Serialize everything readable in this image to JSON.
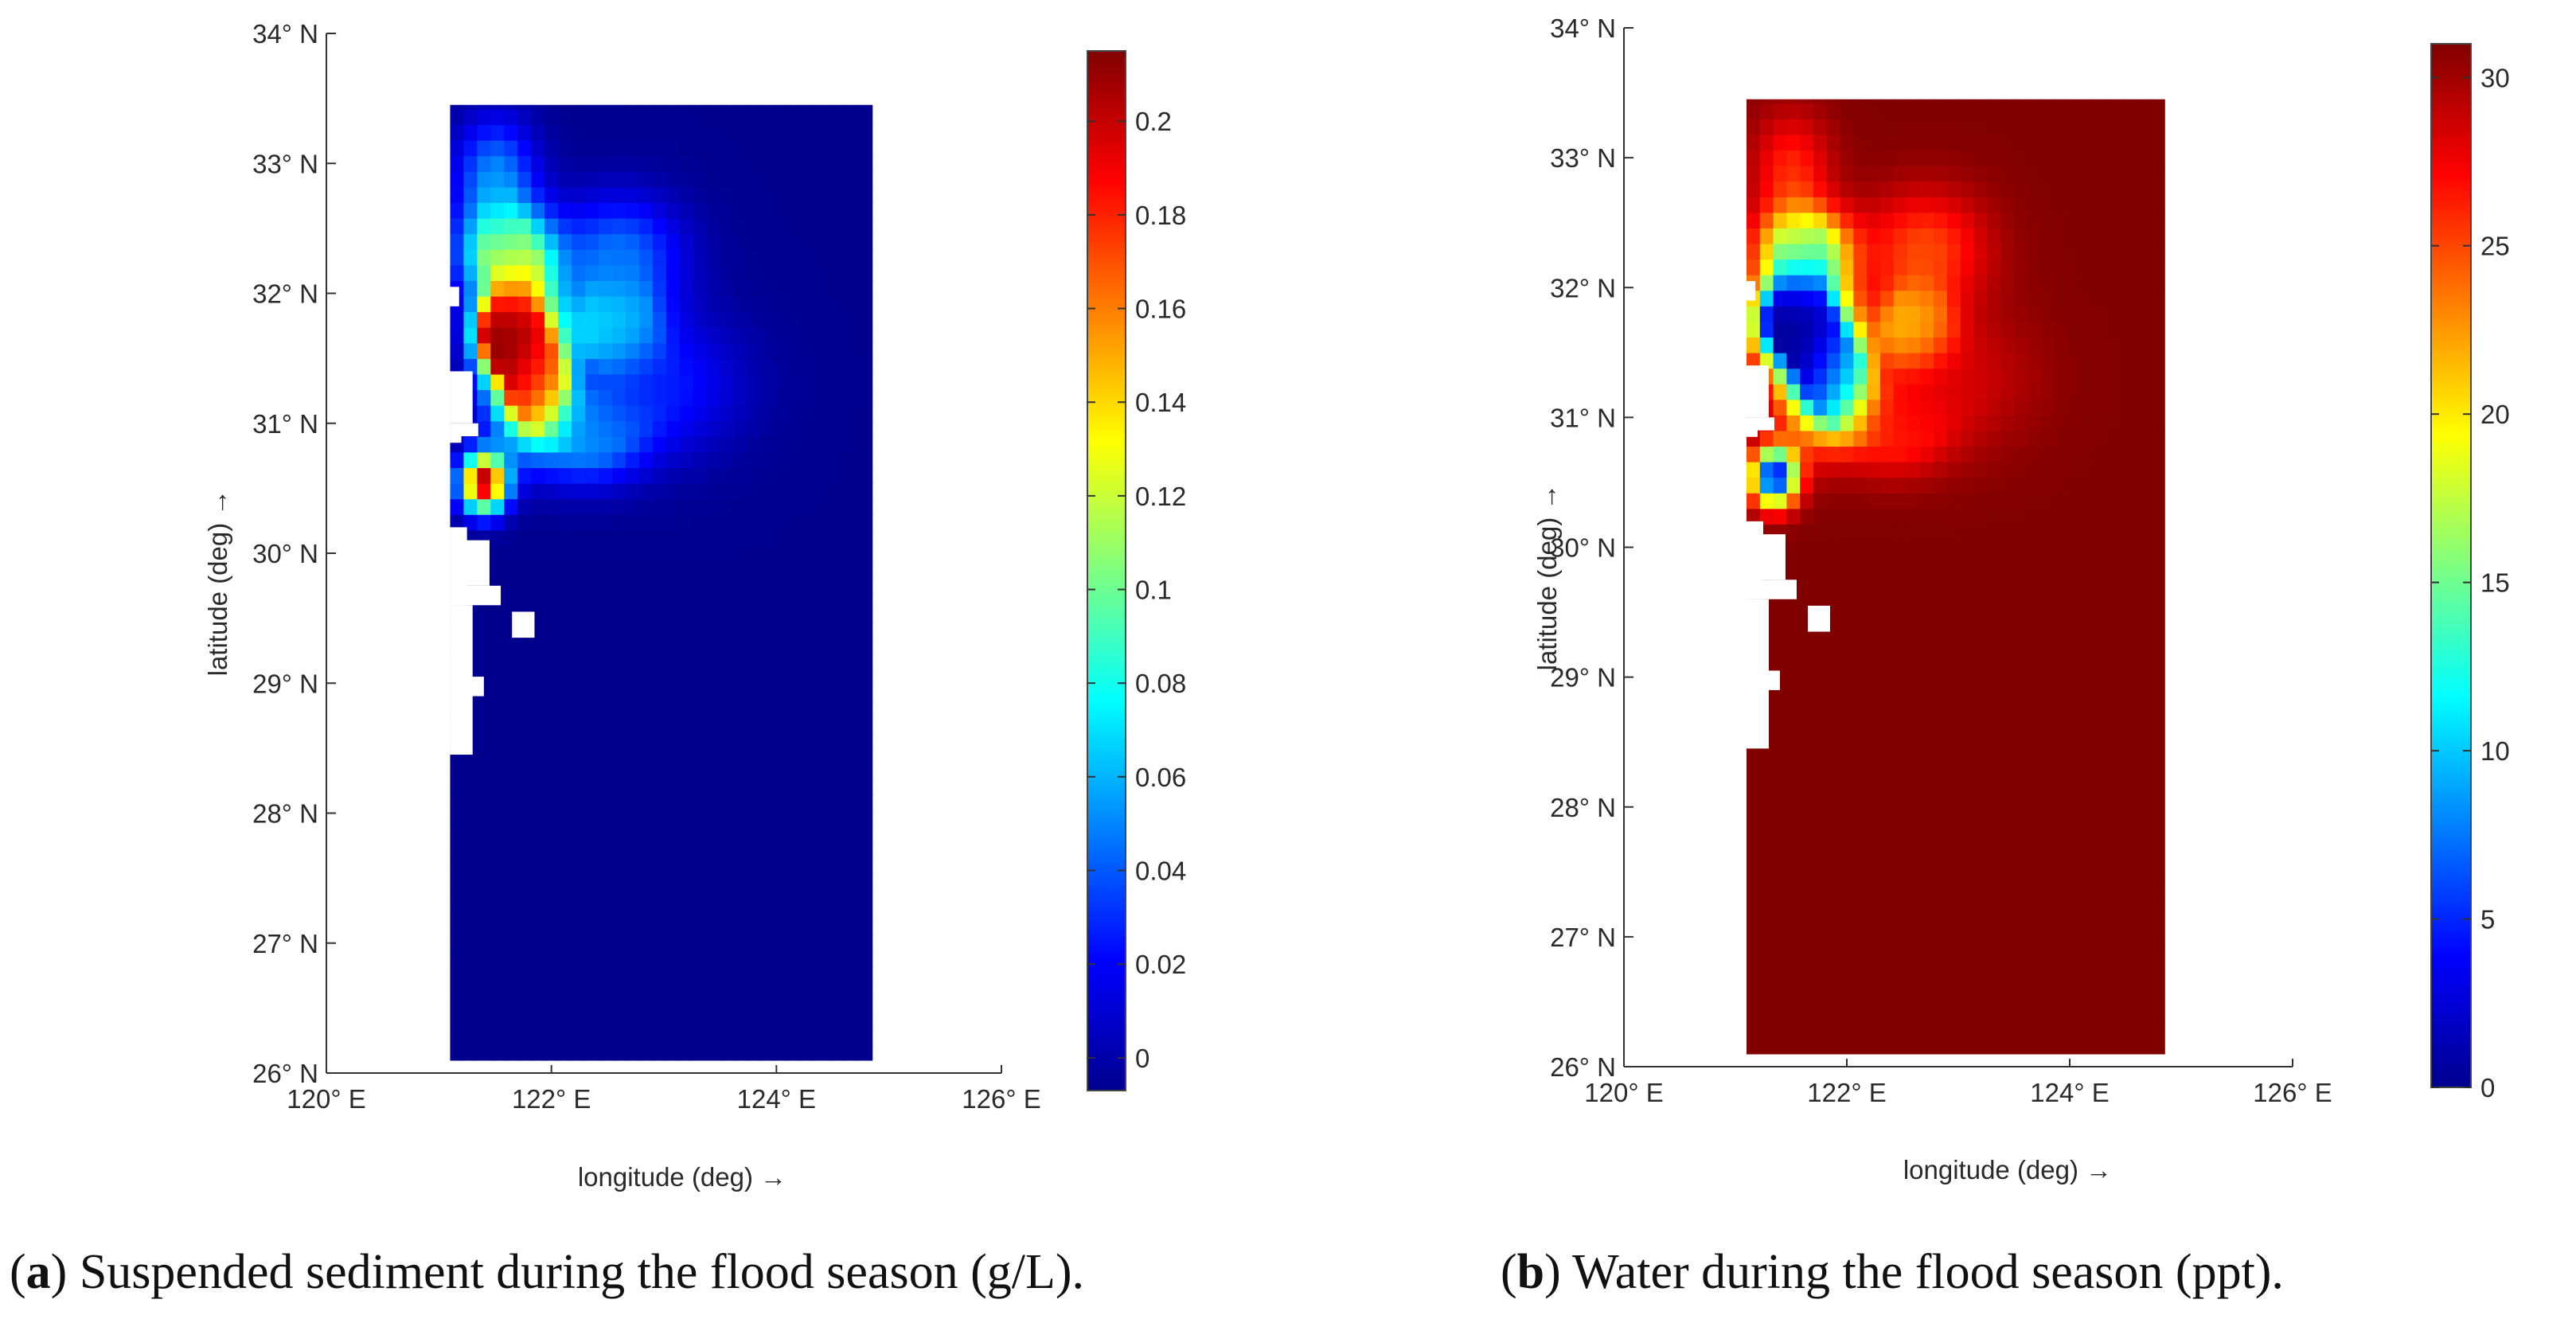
{
  "chart_data": [
    {
      "type": "heatmap",
      "panel_id": "a",
      "caption_bold": "a",
      "caption_text": "Suspended sediment during the flood season (g/L).",
      "xlabel": "longitude (deg) →",
      "ylabel": "latitude (deg) →",
      "xlim": [
        120,
        126
      ],
      "ylim": [
        26,
        34
      ],
      "x_ticks": [
        {
          "value": 120,
          "label": "120° E"
        },
        {
          "value": 122,
          "label": "122° E"
        },
        {
          "value": 124,
          "label": "124° E"
        },
        {
          "value": 126,
          "label": "126° E"
        }
      ],
      "y_ticks": [
        {
          "value": 26,
          "label": "26° N"
        },
        {
          "value": 27,
          "label": "27° N"
        },
        {
          "value": 28,
          "label": "28° N"
        },
        {
          "value": 29,
          "label": "29° N"
        },
        {
          "value": 30,
          "label": "30° N"
        },
        {
          "value": 31,
          "label": "31° N"
        },
        {
          "value": 32,
          "label": "32° N"
        },
        {
          "value": 33,
          "label": "33° N"
        },
        {
          "value": 34,
          "label": "34° N"
        }
      ],
      "colorbar": {
        "range": [
          -0.007,
          0.215
        ],
        "ticks": [
          {
            "value": 0,
            "label": "0"
          },
          {
            "value": 0.02,
            "label": "0.02"
          },
          {
            "value": 0.04,
            "label": "0.04"
          },
          {
            "value": 0.06,
            "label": "0.06"
          },
          {
            "value": 0.08,
            "label": "0.08"
          },
          {
            "value": 0.1,
            "label": "0.1"
          },
          {
            "value": 0.12,
            "label": "0.12"
          },
          {
            "value": 0.14,
            "label": "0.14"
          },
          {
            "value": 0.16,
            "label": "0.16"
          },
          {
            "value": 0.18,
            "label": "0.18"
          },
          {
            "value": 0.2,
            "label": "0.2"
          }
        ]
      },
      "domain": {
        "lon": [
          121.1,
          124.85
        ],
        "lat": [
          26.1,
          33.45
        ]
      },
      "background_value": -0.004,
      "land_cells": [
        {
          "lon": [
            121.1,
            121.3
          ],
          "lat": [
            28.45,
            29.6
          ]
        },
        {
          "lon": [
            121.1,
            121.25
          ],
          "lat": [
            29.6,
            30.2
          ]
        },
        {
          "lon": [
            121.1,
            121.45
          ],
          "lat": [
            29.75,
            30.1
          ]
        },
        {
          "lon": [
            121.1,
            121.55
          ],
          "lat": [
            29.6,
            29.75
          ]
        },
        {
          "lon": [
            121.1,
            121.4
          ],
          "lat": [
            28.9,
            29.05
          ]
        },
        {
          "lon": [
            121.65,
            121.85
          ],
          "lat": [
            29.35,
            29.55
          ]
        },
        {
          "lon": [
            121.1,
            121.35
          ],
          "lat": [
            30.9,
            31.0
          ]
        },
        {
          "lon": [
            121.1,
            121.2
          ],
          "lat": [
            30.85,
            30.95
          ]
        },
        {
          "lon": [
            121.1,
            121.3
          ],
          "lat": [
            31.0,
            31.4
          ]
        },
        {
          "lon": [
            121.1,
            121.18
          ],
          "lat": [
            31.9,
            32.05
          ]
        }
      ],
      "features": [
        {
          "lon": 121.75,
          "lat": 31.55,
          "value": 0.215,
          "rx": 0.32,
          "ry": 0.55
        },
        {
          "lon": 121.55,
          "lat": 31.7,
          "value": 0.21,
          "rx": 0.22,
          "ry": 0.25
        },
        {
          "lon": 121.4,
          "lat": 30.55,
          "value": 0.205,
          "rx": 0.2,
          "ry": 0.22
        },
        {
          "lon": 121.9,
          "lat": 31.3,
          "value": 0.17,
          "rx": 0.22,
          "ry": 0.3
        },
        {
          "lon": 121.6,
          "lat": 32.3,
          "value": 0.11,
          "rx": 0.4,
          "ry": 0.35
        },
        {
          "lon": 122.55,
          "lat": 31.75,
          "value": 0.08,
          "rx": 0.35,
          "ry": 0.3
        },
        {
          "lon": 122.6,
          "lat": 32.3,
          "value": 0.045,
          "rx": 0.55,
          "ry": 0.45
        },
        {
          "lon": 121.5,
          "lat": 32.9,
          "value": 0.05,
          "rx": 0.35,
          "ry": 0.45
        },
        {
          "lon": 122.3,
          "lat": 30.9,
          "value": 0.055,
          "rx": 0.5,
          "ry": 0.35
        },
        {
          "lon": 123.0,
          "lat": 31.3,
          "value": 0.025,
          "rx": 0.7,
          "ry": 0.55
        }
      ]
    },
    {
      "type": "heatmap",
      "panel_id": "b",
      "caption_bold": "b",
      "caption_text": "Water during the flood season (ppt).",
      "xlabel": "longitude (deg) →",
      "ylabel": "latitude (deg) →",
      "xlim": [
        120,
        126
      ],
      "ylim": [
        26,
        34
      ],
      "x_ticks": [
        {
          "value": 120,
          "label": "120° E"
        },
        {
          "value": 122,
          "label": "122° E"
        },
        {
          "value": 124,
          "label": "124° E"
        },
        {
          "value": 126,
          "label": "126° E"
        }
      ],
      "y_ticks": [
        {
          "value": 26,
          "label": "26° N"
        },
        {
          "value": 27,
          "label": "27° N"
        },
        {
          "value": 28,
          "label": "28° N"
        },
        {
          "value": 29,
          "label": "29° N"
        },
        {
          "value": 30,
          "label": "30° N"
        },
        {
          "value": 31,
          "label": "31° N"
        },
        {
          "value": 32,
          "label": "32° N"
        },
        {
          "value": 33,
          "label": "33° N"
        },
        {
          "value": 34,
          "label": "34° N"
        }
      ],
      "colorbar": {
        "range": [
          0,
          31
        ],
        "ticks": [
          {
            "value": 0,
            "label": "0"
          },
          {
            "value": 5,
            "label": "5"
          },
          {
            "value": 10,
            "label": "10"
          },
          {
            "value": 15,
            "label": "15"
          },
          {
            "value": 20,
            "label": "20"
          },
          {
            "value": 25,
            "label": "25"
          },
          {
            "value": 30,
            "label": "30"
          }
        ]
      },
      "domain": {
        "lon": [
          121.1,
          124.85
        ],
        "lat": [
          26.1,
          33.45
        ]
      },
      "background_value": 31,
      "land_cells": [
        {
          "lon": [
            121.1,
            121.3
          ],
          "lat": [
            28.45,
            29.6
          ]
        },
        {
          "lon": [
            121.1,
            121.25
          ],
          "lat": [
            29.6,
            30.2
          ]
        },
        {
          "lon": [
            121.1,
            121.45
          ],
          "lat": [
            29.75,
            30.1
          ]
        },
        {
          "lon": [
            121.1,
            121.55
          ],
          "lat": [
            29.6,
            29.75
          ]
        },
        {
          "lon": [
            121.1,
            121.4
          ],
          "lat": [
            28.9,
            29.05
          ]
        },
        {
          "lon": [
            121.65,
            121.85
          ],
          "lat": [
            29.35,
            29.55
          ]
        },
        {
          "lon": [
            121.1,
            121.35
          ],
          "lat": [
            30.9,
            31.0
          ]
        },
        {
          "lon": [
            121.1,
            121.2
          ],
          "lat": [
            30.85,
            30.95
          ]
        },
        {
          "lon": [
            121.1,
            121.3
          ],
          "lat": [
            31.0,
            31.4
          ]
        },
        {
          "lon": [
            121.1,
            121.18
          ],
          "lat": [
            31.9,
            32.05
          ]
        }
      ],
      "features": [
        {
          "lon": 121.7,
          "lat": 31.55,
          "value": 0.5,
          "rx": 0.32,
          "ry": 0.55
        },
        {
          "lon": 121.45,
          "lat": 31.75,
          "value": 1,
          "rx": 0.3,
          "ry": 0.3
        },
        {
          "lon": 121.35,
          "lat": 30.55,
          "value": 3,
          "rx": 0.2,
          "ry": 0.22
        },
        {
          "lon": 121.95,
          "lat": 31.3,
          "value": 9,
          "rx": 0.25,
          "ry": 0.35
        },
        {
          "lon": 121.6,
          "lat": 32.3,
          "value": 16,
          "rx": 0.4,
          "ry": 0.3
        },
        {
          "lon": 122.6,
          "lat": 31.7,
          "value": 19,
          "rx": 0.3,
          "ry": 0.28
        },
        {
          "lon": 122.7,
          "lat": 32.3,
          "value": 25,
          "rx": 0.55,
          "ry": 0.45
        },
        {
          "lon": 121.5,
          "lat": 32.9,
          "value": 26,
          "rx": 0.35,
          "ry": 0.45
        },
        {
          "lon": 122.4,
          "lat": 30.9,
          "value": 26,
          "rx": 0.5,
          "ry": 0.35
        },
        {
          "lon": 123.0,
          "lat": 31.3,
          "value": 28.5,
          "rx": 0.7,
          "ry": 0.55
        }
      ]
    }
  ]
}
